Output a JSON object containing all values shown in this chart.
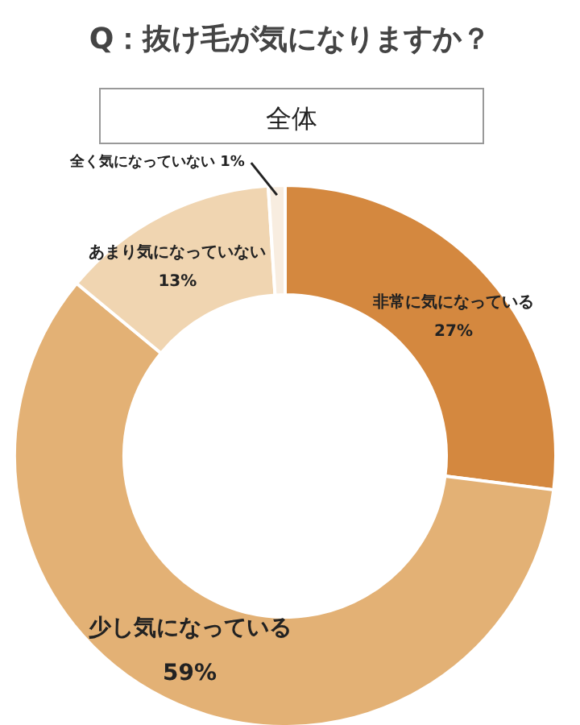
{
  "chart_data": {
    "type": "donut",
    "title": "Q：抜け毛が気になりますか？",
    "subtitle": "全体",
    "categories": [
      "非常に気になっている",
      "少し気になっている",
      "あまり気になっていない",
      "全く気になっていない"
    ],
    "values": [
      27,
      59,
      13,
      1
    ],
    "colors": [
      "#d4883f",
      "#e3b175",
      "#f0d5b1",
      "#f8ede0"
    ],
    "value_labels": [
      "27%",
      "59%",
      "13%",
      "1%"
    ]
  }
}
